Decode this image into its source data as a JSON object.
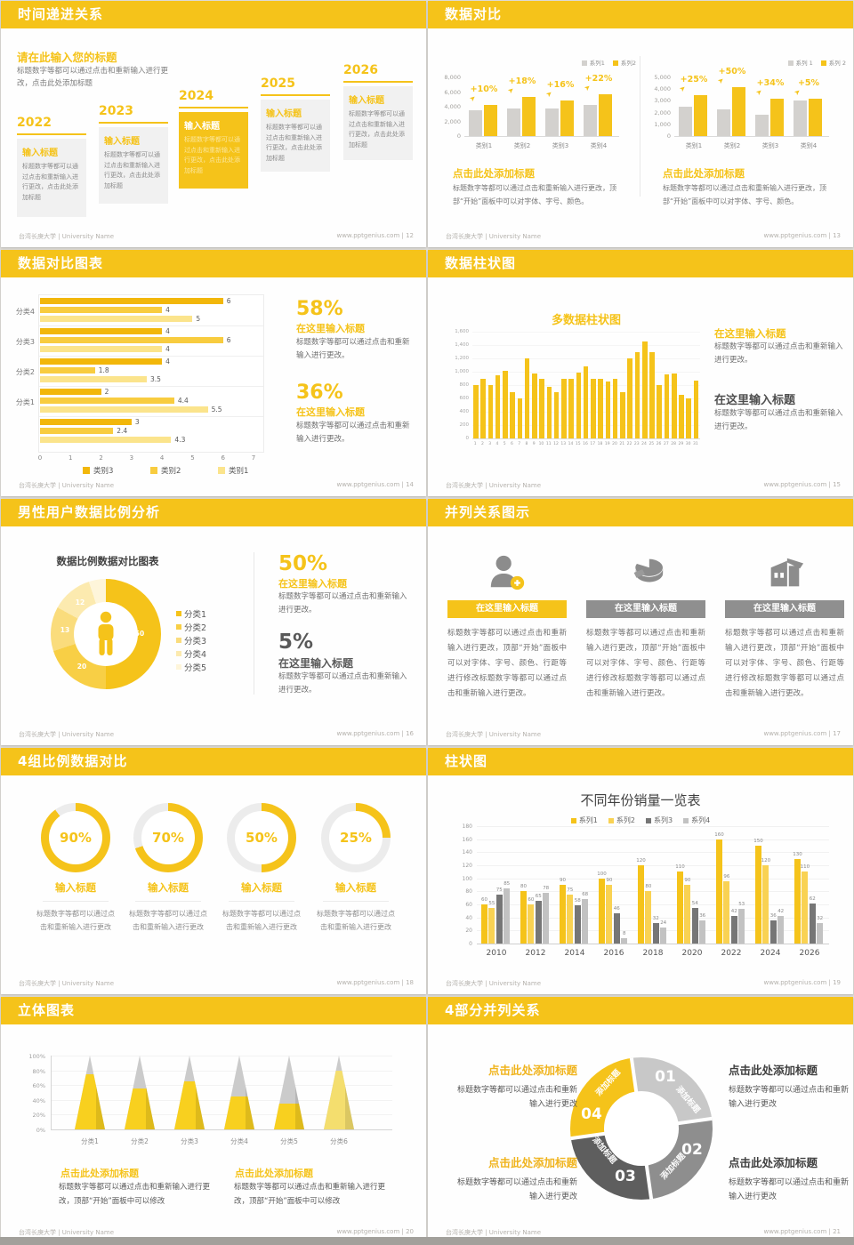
{
  "footer": {
    "left": "台湾长庚大学 | University Name",
    "site": "www.pptgenius.com"
  },
  "colors": {
    "accent": "#F5C31A",
    "yellow2": "#F8CF45",
    "yellow3": "#FADC7C",
    "yellow4": "#FCEAAF",
    "yellow5": "#FEF5DA",
    "grayBar": "#D3D1CE",
    "seg1": "#C8C8C8",
    "seg2": "#8E8E8E",
    "seg3": "#5E5E5E",
    "dark": "#595959"
  },
  "slides": {
    "s1": {
      "title": "时间递进关系",
      "page": "12",
      "heading": "请在此输入您的标题",
      "intro": "标题数字等都可以通过点击和重新输入进行更改，点击此处添加标题",
      "steps": [
        {
          "year": "2022",
          "label": "输入标题",
          "body": "标题数字等都可以通过点击和重新输入进行更改，点击此处添加标题"
        },
        {
          "year": "2023",
          "label": "输入标题",
          "body": "标题数字等都可以通过点击和重新输入进行更改，点击此处添加标题"
        },
        {
          "year": "2024",
          "label": "输入标题",
          "body": "标题数字等都可以通过点击和重新输入进行更改，点击此处添加标题"
        },
        {
          "year": "2025",
          "label": "输入标题",
          "body": "标题数字等都可以通过点击和重新输入进行更改，点击此处添加标题"
        },
        {
          "year": "2026",
          "label": "输入标题",
          "body": "标题数字等都可以通过点击和重新输入进行更改，点击此处添加标题"
        }
      ]
    },
    "s2": {
      "title": "数据对比",
      "page": "13",
      "charts": [
        {
          "legend": [
            "系列1",
            "系列2"
          ],
          "ymax": 8000,
          "yticks": [
            "8,000",
            "6,000",
            "4,000",
            "2,000",
            "0"
          ],
          "categories": [
            "类别1",
            "类别2",
            "类别3",
            "类别4"
          ],
          "series1": [
            3500,
            3800,
            3700,
            4300
          ],
          "series2": [
            4200,
            5300,
            4800,
            5700
          ],
          "labels": [
            "+10%",
            "+18%",
            "+16%",
            "+22%"
          ],
          "heading": "点击此处添加标题",
          "body": "标题数字等都可以通过点击和重新输入进行更改，顶部“开始”面板中可以对字体、字号、颜色。"
        },
        {
          "legend": [
            "系列 1",
            "系列 2"
          ],
          "ymax": 5000,
          "yticks": [
            "5,000",
            "4,000",
            "3,000",
            "2,000",
            "1,000",
            "0"
          ],
          "categories": [
            "类别1",
            "类别2",
            "类别3",
            "类别4"
          ],
          "series1": [
            2500,
            2300,
            1800,
            3000
          ],
          "series2": [
            3500,
            4200,
            3200,
            3200
          ],
          "labels": [
            "+25%",
            "+50%",
            "+34%",
            "+5%"
          ],
          "heading": "点击此处添加标题",
          "body": "标题数字等都可以通过点击和重新输入进行更改，顶部“开始”面板中可以对字体、字号、颜色。"
        }
      ]
    },
    "s3": {
      "title": "数据对比图表",
      "page": "14",
      "chart": {
        "xmax": 7,
        "xticks": [
          "0",
          "1",
          "2",
          "3",
          "4",
          "5",
          "6",
          "7"
        ],
        "group_labels": [
          "分类4",
          "分类3",
          "分类2",
          "分类1",
          ""
        ],
        "groups": [
          [
            6,
            4,
            5
          ],
          [
            4,
            6,
            4
          ],
          [
            4,
            1.8,
            3.5
          ],
          [
            2,
            4.4,
            5.5
          ],
          [
            3,
            2.4,
            4.3
          ]
        ],
        "legend": [
          "类别3",
          "类别2",
          "类别1"
        ]
      },
      "stats": [
        {
          "pct": "58%",
          "sub": "在这里输入标题",
          "body": "标题数字等都可以通过点击和重新输入进行更改。"
        },
        {
          "pct": "36%",
          "sub": "在这里输入标题",
          "body": "标题数字等都可以通过点击和重新输入进行更改。"
        }
      ]
    },
    "s4": {
      "title": "数据柱状图",
      "page": "15",
      "chart_title": "多数据柱状图",
      "ymax": 1600,
      "yticks": [
        "1,600",
        "1,400",
        "1,200",
        "1,000",
        "800",
        "600",
        "400",
        "200",
        "0"
      ],
      "values": [
        800,
        900,
        800,
        950,
        1020,
        700,
        600,
        1200,
        980,
        900,
        780,
        700,
        900,
        900,
        990,
        1080,
        900,
        900,
        860,
        900,
        700,
        1200,
        1300,
        1450,
        1300,
        800,
        960,
        970,
        650,
        600,
        870
      ],
      "panels": [
        {
          "heading": "在这里输入标题",
          "body": "标题数字等都可以通过点击和重新输入进行更改。"
        },
        {
          "heading": "在这里输入标题",
          "body": "标题数字等都可以通过点击和重新输入进行更改。"
        }
      ]
    },
    "s5": {
      "title": "男性用户数据比例分析",
      "page": "16",
      "chart_title": "数据比例数据对比图表",
      "slices": [
        {
          "label": "分类1",
          "value": "50"
        },
        {
          "label": "分类2",
          "value": "20"
        },
        {
          "label": "分类3",
          "value": "13"
        },
        {
          "label": "分类4",
          "value": "12"
        },
        {
          "label": "分类5",
          "value": "5"
        }
      ],
      "stats": [
        {
          "pct": "50%",
          "sub": "在这里输入标题",
          "body": "标题数字等都可以通过点击和重新输入进行更改。"
        },
        {
          "pct": "5%",
          "sub": "在这里输入标题",
          "body": "标题数字等都可以通过点击和重新输入进行更改。"
        }
      ]
    },
    "s6": {
      "title": "并列关系图示",
      "page": "17",
      "columns": [
        {
          "icon": "person-plus-icon",
          "banner": "在这里输入标题",
          "body": "标题数字等都可以通过点击和重新输入进行更改，顶部“开始”面板中可以对字体、字号、颜色、行距等进行修改标题数字等都可以通过点击和重新输入进行更改。"
        },
        {
          "icon": "pie-3d-icon",
          "banner": "在这里输入标题",
          "body": "标题数字等都可以通过点击和重新输入进行更改，顶部“开始”面板中可以对字体、字号、颜色、行距等进行修改标题数字等都可以通过点击和重新输入进行更改。"
        },
        {
          "icon": "building-icon",
          "banner": "在这里输入标题",
          "body": "标题数字等都可以通过点击和重新输入进行更改，顶部“开始”面板中可以对字体、字号、颜色、行距等进行修改标题数字等都可以通过点击和重新输入进行更改。"
        }
      ]
    },
    "s7": {
      "title": "4组比例数据对比",
      "page": "18",
      "gauges": [
        {
          "percent": 90,
          "label": "90%",
          "heading": "输入标题",
          "body": "标题数字等都可以通过点击和重新输入进行更改"
        },
        {
          "percent": 70,
          "label": "70%",
          "heading": "输入标题",
          "body": "标题数字等都可以通过点击和重新输入进行更改"
        },
        {
          "percent": 50,
          "label": "50%",
          "heading": "输入标题",
          "body": "标题数字等都可以通过点击和重新输入进行更改"
        },
        {
          "percent": 25,
          "label": "25%",
          "heading": "输入标题",
          "body": "标题数字等都可以通过点击和重新输入进行更改"
        }
      ]
    },
    "s8": {
      "title": "柱状图",
      "page": "19",
      "chart_title": "不同年份销量一览表",
      "ymax": 180,
      "yticks": [
        0,
        20,
        40,
        60,
        80,
        100,
        120,
        140,
        160,
        180
      ],
      "categories": [
        "2010",
        "2012",
        "2014",
        "2016",
        "2018",
        "2020",
        "2022",
        "2024",
        "2026"
      ],
      "series": [
        {
          "name": "系列1",
          "values": [
            60,
            80,
            90,
            100,
            120,
            110,
            160,
            150,
            130
          ]
        },
        {
          "name": "系列2",
          "values": [
            55,
            60,
            75,
            90,
            80,
            90,
            96,
            120,
            110
          ]
        },
        {
          "name": "系列3",
          "values": [
            75,
            65,
            58,
            46,
            32,
            54,
            42,
            36,
            62
          ]
        },
        {
          "name": "系列4",
          "values": [
            85,
            78,
            68,
            8,
            24,
            36,
            53,
            42,
            32
          ]
        }
      ]
    },
    "s9": {
      "title": "立体图表",
      "page": "20",
      "yticks": [
        "100%",
        "80%",
        "60%",
        "40%",
        "20%",
        "0%"
      ],
      "categories": [
        "分类1",
        "分类2",
        "分类3",
        "分类4",
        "分类5",
        "分类6"
      ],
      "fractions": [
        75,
        55,
        65,
        45,
        35,
        80
      ],
      "blocks": [
        {
          "heading": "点击此处添加标题",
          "body": "标题数字等都可以通过点击和重新输入进行更改，顶部“开始”面板中可以修改"
        },
        {
          "heading": "点击此处添加标题",
          "body": "标题数字等都可以通过点击和重新输入进行更改，顶部“开始”面板中可以修改"
        }
      ]
    },
    "s10": {
      "title": "4部分并列关系",
      "page": "21",
      "segments": [
        {
          "num": "01",
          "label": "添加标题"
        },
        {
          "num": "02",
          "label": "添加标题"
        },
        {
          "num": "03",
          "label": "添加标题"
        },
        {
          "num": "04",
          "label": "添加标题"
        }
      ],
      "blocks_left": [
        {
          "heading": "点击此处添加标题",
          "body": "标题数字等都可以通过点击和重新输入进行更改"
        },
        {
          "heading": "点击此处添加标题",
          "body": "标题数字等都可以通过点击和重新输入进行更改"
        }
      ],
      "blocks_right": [
        {
          "heading": "点击此处添加标题",
          "body": "标题数字等都可以通过点击和重新输入进行更改"
        },
        {
          "heading": "点击此处添加标题",
          "body": "标题数字等都可以通过点击和重新输入进行更改"
        }
      ]
    }
  }
}
